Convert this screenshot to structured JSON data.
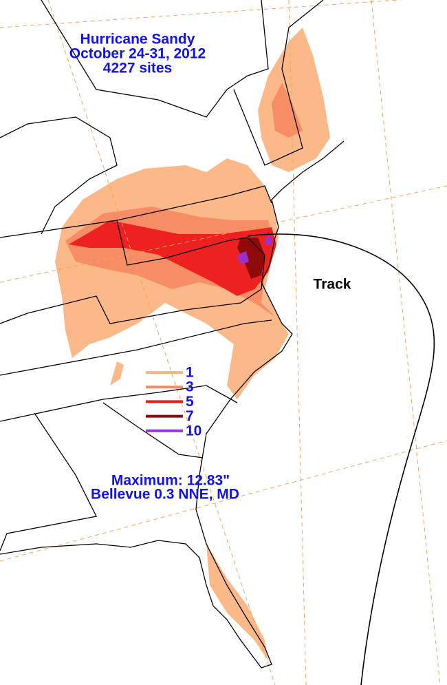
{
  "header": {
    "title": "Hurricane Sandy",
    "dates": "October 24-31, 2012",
    "sites": "4227 sites"
  },
  "legend": {
    "levels": [
      1,
      3,
      5,
      7,
      10
    ],
    "colors": [
      "#fbb482",
      "#f58a62",
      "#ec1c1c",
      "#8b0a0a",
      "#9a33d6"
    ]
  },
  "track_label": "Track",
  "maximum": {
    "value": "Maximum: 12.83\"",
    "location": "Bellevue 0.3 NNE, MD"
  }
}
